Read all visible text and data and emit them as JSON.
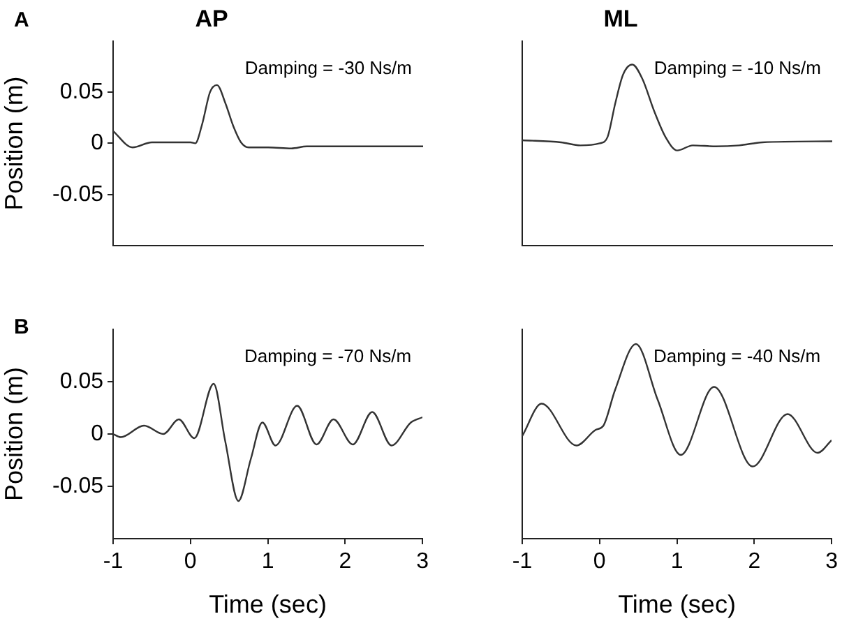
{
  "chart_data": [
    {
      "type": "line",
      "title": "AP",
      "ylabel": "Position (m)",
      "annotations": [
        "A",
        "Damping = -30 Ns/m"
      ],
      "xlim": [
        -1,
        3
      ],
      "xticks": [
        -1,
        0,
        1,
        2,
        3
      ],
      "ylim": [
        -0.1,
        0.1
      ],
      "yticks": [
        -0.05,
        0,
        0.05
      ],
      "tick_labels": "y",
      "legend": false,
      "marker": "none",
      "line_style": "solid",
      "series": [
        {
          "color": "#333333",
          "x": [
            -1,
            -0.75,
            -0.5,
            -0.25,
            0,
            0.06,
            0.15,
            0.25,
            0.34,
            0.45,
            0.55,
            0.65,
            0.75,
            1,
            1.3,
            1.5,
            2,
            3
          ],
          "values": [
            0.012,
            -0.004,
            0.001,
            0.001,
            0.001,
            0,
            0.019,
            0.05,
            0.057,
            0.039,
            0.017,
            0.001,
            -0.004,
            -0.004,
            -0.005,
            -0.003,
            -0.003,
            -0.003
          ]
        }
      ]
    },
    {
      "type": "line",
      "title": "ML",
      "annotations": [
        "Damping = -10 Ns/m"
      ],
      "xlim": [
        -1,
        3
      ],
      "xticks": [
        -1,
        0,
        1,
        2,
        3
      ],
      "ylim": [
        -0.1,
        0.1
      ],
      "yticks": [
        -0.05,
        0,
        0.05
      ],
      "tick_labels": false,
      "legend": false,
      "marker": "none",
      "line_style": "solid",
      "series": [
        {
          "color": "#333333",
          "x": [
            -1,
            -0.5,
            -0.25,
            0,
            0.1,
            0.2,
            0.3,
            0.42,
            0.55,
            0.7,
            0.85,
            1,
            1.2,
            1.5,
            1.8,
            2.1,
            3
          ],
          "values": [
            0.003,
            0.001,
            -0.002,
            0,
            0.006,
            0.039,
            0.067,
            0.077,
            0.063,
            0.032,
            0.006,
            -0.007,
            -0.002,
            -0.003,
            -0.002,
            0.001,
            0.002
          ]
        }
      ]
    },
    {
      "type": "line",
      "xlabel": "Time (sec)",
      "ylabel": "Position (m)",
      "annotations": [
        "B",
        "Damping = -70 Ns/m"
      ],
      "xlim": [
        -1,
        3
      ],
      "xticks": [
        -1,
        0,
        1,
        2,
        3
      ],
      "ylim": [
        -0.1,
        0.1
      ],
      "yticks": [
        -0.05,
        0,
        0.05
      ],
      "legend": false,
      "marker": "none",
      "line_style": "solid",
      "series": [
        {
          "color": "#333333",
          "x": [
            -1,
            -0.9,
            -0.6,
            -0.35,
            -0.15,
            0.05,
            0.3,
            0.45,
            0.62,
            0.78,
            0.93,
            1.1,
            1.38,
            1.63,
            1.85,
            2.1,
            2.35,
            2.6,
            2.85,
            3
          ],
          "values": [
            0,
            -0.003,
            0.008,
            0,
            0.014,
            -0.004,
            0.048,
            -0.007,
            -0.064,
            -0.024,
            0.011,
            -0.011,
            0.027,
            -0.01,
            0.014,
            -0.01,
            0.021,
            -0.011,
            0.011,
            0.016
          ]
        }
      ]
    },
    {
      "type": "line",
      "xlabel": "Time (sec)",
      "annotations": [
        "Damping = -40 Ns/m"
      ],
      "xlim": [
        -1,
        3
      ],
      "xticks": [
        -1,
        0,
        1,
        2,
        3
      ],
      "ylim": [
        -0.1,
        0.1
      ],
      "yticks": [
        -0.05,
        0,
        0.05
      ],
      "tick_labels": "x",
      "legend": false,
      "marker": "none",
      "line_style": "solid",
      "series": [
        {
          "color": "#333333",
          "x": [
            -1,
            -0.75,
            -0.3,
            -0.05,
            0.05,
            0.2,
            0.47,
            0.75,
            1.05,
            1.48,
            1.98,
            2.43,
            2.82,
            3
          ],
          "values": [
            -0.002,
            0.029,
            -0.011,
            0.004,
            0.008,
            0.042,
            0.086,
            0.033,
            -0.02,
            0.045,
            -0.031,
            0.019,
            -0.018,
            -0.006
          ]
        }
      ]
    }
  ]
}
